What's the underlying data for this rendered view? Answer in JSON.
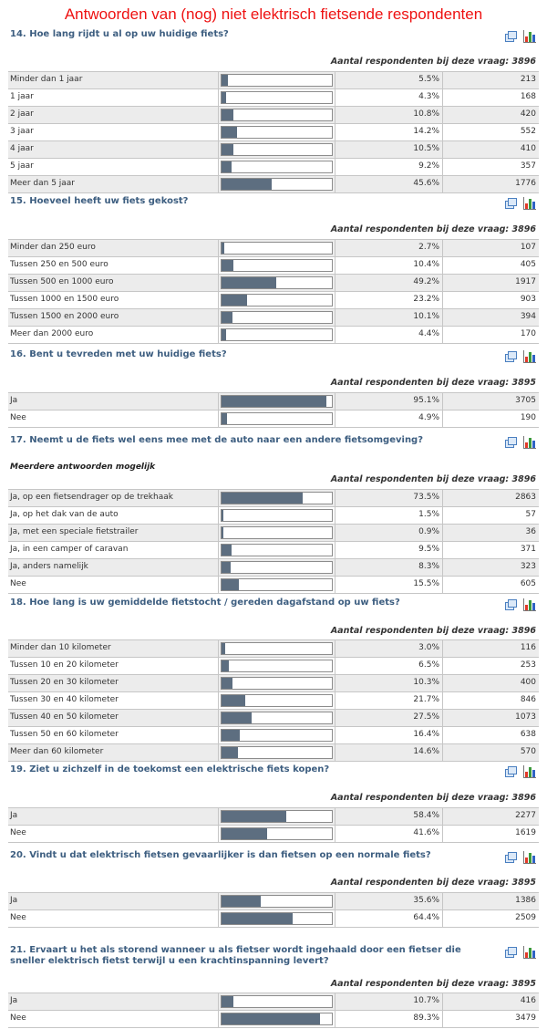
{
  "page_title": "Antwoorden van (nog) niet elektrisch fietsende respondenten",
  "respondents_prefix": "Aantal respondenten bij deze vraag:",
  "icons": {
    "table": "table-view-icon",
    "chart": "bar-chart-icon"
  },
  "questions": [
    {
      "title": "14. Hoe lang rijdt u al op uw huidige fiets?",
      "respondents": "3896",
      "rows": [
        {
          "label": "Minder dan 1 jaar",
          "pct": "5.5%",
          "fraction": 0.055,
          "count": "213"
        },
        {
          "label": "1 jaar",
          "pct": "4.3%",
          "fraction": 0.043,
          "count": "168"
        },
        {
          "label": "2 jaar",
          "pct": "10.8%",
          "fraction": 0.108,
          "count": "420"
        },
        {
          "label": "3 jaar",
          "pct": "14.2%",
          "fraction": 0.142,
          "count": "552"
        },
        {
          "label": "4 jaar",
          "pct": "10.5%",
          "fraction": 0.105,
          "count": "410"
        },
        {
          "label": "5 jaar",
          "pct": "9.2%",
          "fraction": 0.092,
          "count": "357"
        },
        {
          "label": "Meer dan 5 jaar",
          "pct": "45.6%",
          "fraction": 0.456,
          "count": "1776"
        }
      ]
    },
    {
      "title": "15. Hoeveel heeft uw fiets gekost?",
      "respondents": "3896",
      "rows": [
        {
          "label": "Minder dan 250 euro",
          "pct": "2.7%",
          "fraction": 0.027,
          "count": "107"
        },
        {
          "label": "Tussen 250 en 500 euro",
          "pct": "10.4%",
          "fraction": 0.104,
          "count": "405"
        },
        {
          "label": "Tussen 500 en 1000 euro",
          "pct": "49.2%",
          "fraction": 0.492,
          "count": "1917"
        },
        {
          "label": "Tussen 1000 en 1500 euro",
          "pct": "23.2%",
          "fraction": 0.232,
          "count": "903"
        },
        {
          "label": "Tussen 1500 en 2000 euro",
          "pct": "10.1%",
          "fraction": 0.101,
          "count": "394"
        },
        {
          "label": "Meer dan 2000 euro",
          "pct": "4.4%",
          "fraction": 0.044,
          "count": "170"
        }
      ]
    },
    {
      "title": "16. Bent u tevreden met uw huidige fiets?",
      "respondents": "3895",
      "rows": [
        {
          "label": "Ja",
          "pct": "95.1%",
          "fraction": 0.951,
          "count": "3705"
        },
        {
          "label": "Nee",
          "pct": "4.9%",
          "fraction": 0.049,
          "count": "190"
        }
      ]
    },
    {
      "title": "17. Neemt u de fiets wel eens mee met de auto naar een andere fietsomgeving?",
      "respondents": "3896",
      "note": "Meerdere antwoorden mogelijk",
      "rows": [
        {
          "label": "Ja, op een fietsendrager op de trekhaak",
          "pct": "73.5%",
          "fraction": 0.735,
          "count": "2863"
        },
        {
          "label": "Ja, op het dak van de auto",
          "pct": "1.5%",
          "fraction": 0.015,
          "count": "57"
        },
        {
          "label": "Ja, met een speciale fietstrailer",
          "pct": "0.9%",
          "fraction": 0.009,
          "count": "36"
        },
        {
          "label": "Ja, in een camper of caravan",
          "pct": "9.5%",
          "fraction": 0.095,
          "count": "371"
        },
        {
          "label": "Ja, anders namelijk",
          "pct": "8.3%",
          "fraction": 0.083,
          "count": "323"
        },
        {
          "label": "Nee",
          "pct": "15.5%",
          "fraction": 0.155,
          "count": "605"
        }
      ]
    },
    {
      "title": "18. Hoe lang is uw gemiddelde fietstocht / gereden dagafstand op uw fiets?",
      "respondents": "3896",
      "rows": [
        {
          "label": "Minder dan 10 kilometer",
          "pct": "3.0%",
          "fraction": 0.03,
          "count": "116"
        },
        {
          "label": "Tussen 10 en 20 kilometer",
          "pct": "6.5%",
          "fraction": 0.065,
          "count": "253"
        },
        {
          "label": "Tussen 20 en 30 kilometer",
          "pct": "10.3%",
          "fraction": 0.103,
          "count": "400"
        },
        {
          "label": "Tussen 30 en 40 kilometer",
          "pct": "21.7%",
          "fraction": 0.217,
          "count": "846"
        },
        {
          "label": "Tussen 40 en 50 kilometer",
          "pct": "27.5%",
          "fraction": 0.275,
          "count": "1073"
        },
        {
          "label": "Tussen 50 en 60 kilometer",
          "pct": "16.4%",
          "fraction": 0.164,
          "count": "638"
        },
        {
          "label": "Meer dan 60 kilometer",
          "pct": "14.6%",
          "fraction": 0.146,
          "count": "570"
        }
      ]
    },
    {
      "title": "19. Ziet u zichzelf in de toekomst een elektrische fiets kopen?",
      "respondents": "3896",
      "rows": [
        {
          "label": "Ja",
          "pct": "58.4%",
          "fraction": 0.584,
          "count": "2277"
        },
        {
          "label": "Nee",
          "pct": "41.6%",
          "fraction": 0.416,
          "count": "1619"
        }
      ]
    },
    {
      "title": "20. Vindt u dat elektrisch fietsen gevaarlijker is dan fietsen op een normale fiets?",
      "respondents": "3895",
      "rows": [
        {
          "label": "Ja",
          "pct": "35.6%",
          "fraction": 0.356,
          "count": "1386"
        },
        {
          "label": "Nee",
          "pct": "64.4%",
          "fraction": 0.644,
          "count": "2509"
        }
      ]
    },
    {
      "title": "21. Ervaart u het als storend wanneer u als fietser wordt ingehaald door een fietser die sneller elektrisch fietst terwijl u een krachtinspanning levert?",
      "respondents": "3895",
      "rows": [
        {
          "label": "Ja",
          "pct": "10.7%",
          "fraction": 0.107,
          "count": "416"
        },
        {
          "label": "Nee",
          "pct": "89.3%",
          "fraction": 0.893,
          "count": "3479"
        }
      ]
    }
  ]
}
